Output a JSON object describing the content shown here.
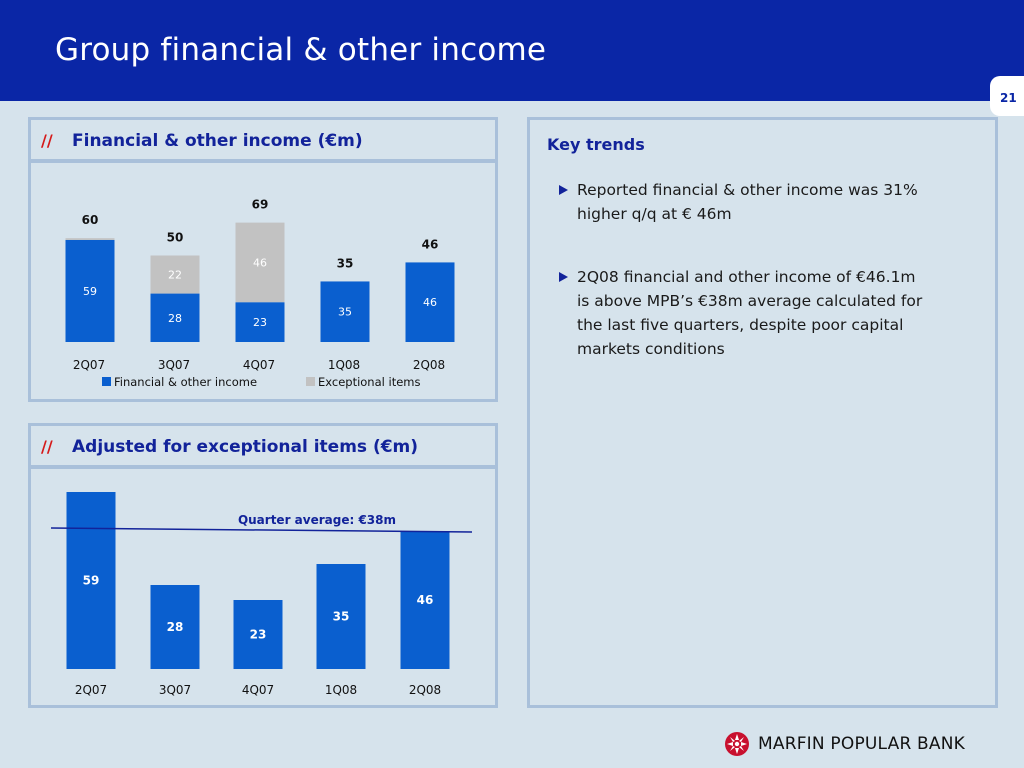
{
  "header": {
    "title": "Group financial & other income"
  },
  "page_number": "21",
  "panel1": {
    "slashes": "//",
    "title": "Financial & other income (€m)"
  },
  "panel2": {
    "slashes": "//",
    "title": "Adjusted for exceptional items (€m)"
  },
  "key_trends": {
    "title": "Key trends",
    "bullets": [
      "Reported financial & other income was 31% higher q/q at € 46m",
      "2Q08 financial and other income of €46.1m is above MPB’s €38m average calculated for the last five quarters, despite poor capital markets conditions"
    ]
  },
  "logo": {
    "text": "MARFIN POPULAR BANK"
  },
  "colors": {
    "brand_blue": "#0a26a6",
    "bar_blue": "#0a5fcf",
    "exceptional_grey": "#c2c2c2",
    "accent_red": "#d51a1a",
    "logo_red": "#c8102e"
  },
  "chart_data": [
    {
      "type": "bar",
      "stacked": true,
      "categories": [
        "2Q07",
        "3Q07",
        "4Q07",
        "1Q08",
        "2Q08"
      ],
      "series": [
        {
          "name": "Financial & other income",
          "values": [
            59,
            28,
            23,
            35,
            46
          ],
          "color": "#0a5fcf"
        },
        {
          "name": "Exceptional items",
          "values": [
            1,
            22,
            46,
            0,
            0
          ],
          "color": "#c2c2c2"
        }
      ],
      "totals": [
        60,
        50,
        69,
        35,
        46
      ],
      "segment_labels": [
        [
          "59",
          "28",
          "23",
          "35",
          "46"
        ],
        [
          "",
          "22",
          "46",
          "",
          ""
        ]
      ],
      "legend_position": "bottom",
      "ylim": [
        0,
        69
      ]
    },
    {
      "type": "bar",
      "categories": [
        "2Q07",
        "3Q07",
        "4Q07",
        "1Q08",
        "2Q08"
      ],
      "values": [
        59,
        28,
        23,
        35,
        46
      ],
      "reference_line": {
        "value": 38,
        "label": "Quarter average: €38m"
      },
      "ylim": [
        0,
        59
      ]
    }
  ]
}
